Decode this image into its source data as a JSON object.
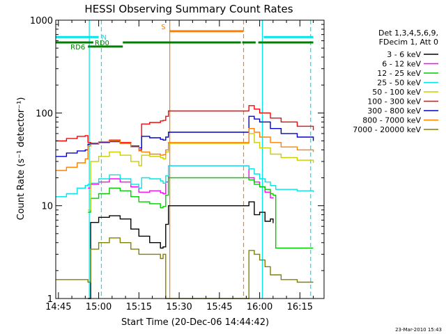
{
  "chart_data": {
    "type": "line",
    "title": "HESSI Observing Summary Count Rates",
    "xlabel": "Start Time (20-Dec-06 14:44:42)",
    "ylabel": "Count Rate (s⁻¹ detector⁻¹)",
    "yscale": "log",
    "ylim": [
      1,
      1000
    ],
    "xlim_minutes_after_1444": [
      0,
      100
    ],
    "x_ticks": [
      {
        "m": 1,
        "label": "14:45"
      },
      {
        "m": 16,
        "label": "15:00"
      },
      {
        "m": 31,
        "label": "15:15"
      },
      {
        "m": 46,
        "label": "15:30"
      },
      {
        "m": 61,
        "label": "15:45"
      },
      {
        "m": 76,
        "label": "16:00"
      },
      {
        "m": 91,
        "label": "16:15"
      }
    ],
    "y_ticks": [
      {
        "v": 1,
        "label": "1"
      },
      {
        "v": 10,
        "label": "10"
      },
      {
        "v": 100,
        "label": "100"
      },
      {
        "v": 1000,
        "label": "1000"
      }
    ],
    "grid": false,
    "legend": {
      "placement": "right",
      "header": [
        "Det 1,3,4,5,6,9,",
        "FDecim 1, Att 0"
      ]
    },
    "series": [
      {
        "name": "3 - 6 keV",
        "color": "#000000",
        "points": [
          [
            12,
            1.0
          ],
          [
            13,
            6.6
          ],
          [
            16,
            7.5
          ],
          [
            20,
            7.8
          ],
          [
            24,
            7.2
          ],
          [
            28,
            5.6
          ],
          [
            31,
            4.7
          ],
          [
            35,
            4.0
          ],
          [
            39,
            3.5
          ],
          [
            40,
            3.6
          ],
          [
            41,
            6.3
          ],
          [
            42,
            10.0
          ],
          [
            72,
            11.0
          ],
          [
            74,
            8.0
          ],
          [
            76,
            8.5
          ],
          [
            78,
            6.8
          ],
          [
            80,
            7.2
          ],
          [
            81,
            6.5
          ]
        ]
      },
      {
        "name": "6 - 12 keV",
        "color": "#ff00ff",
        "points": [
          [
            12,
            15.5
          ],
          [
            13,
            17.0
          ],
          [
            16,
            18.0
          ],
          [
            20,
            19.5
          ],
          [
            24,
            18.0
          ],
          [
            28,
            16.0
          ],
          [
            31,
            14.0
          ],
          [
            35,
            14.5
          ],
          [
            39,
            13.8
          ],
          [
            40,
            13.5
          ],
          [
            41,
            18.0
          ],
          [
            42,
            27.0
          ],
          [
            72,
            20.0
          ],
          [
            74,
            18.0
          ],
          [
            76,
            16.0
          ],
          [
            78,
            14.0
          ],
          [
            80,
            12.2
          ],
          [
            81,
            12.0
          ]
        ]
      },
      {
        "name": "12 - 25 keV",
        "color": "#00cc00",
        "points": [
          [
            12,
            8.5
          ],
          [
            13,
            12.0
          ],
          [
            16,
            13.5
          ],
          [
            20,
            15.5
          ],
          [
            24,
            14.5
          ],
          [
            28,
            12.5
          ],
          [
            31,
            11.0
          ],
          [
            35,
            10.5
          ],
          [
            39,
            9.5
          ],
          [
            40,
            9.8
          ],
          [
            41,
            13.0
          ],
          [
            42,
            20.0
          ],
          [
            72,
            19.0
          ],
          [
            74,
            17.0
          ],
          [
            76,
            16.0
          ],
          [
            78,
            15.0
          ],
          [
            80,
            13.5
          ],
          [
            81,
            13.0
          ],
          [
            82,
            3.5
          ],
          [
            96,
            3.5
          ]
        ]
      },
      {
        "name": "25 - 50 keV",
        "color": "#00e5e5",
        "points": [
          [
            0,
            12.5
          ],
          [
            4,
            13.5
          ],
          [
            8,
            15.5
          ],
          [
            11,
            16.5
          ],
          [
            12,
            17.0
          ],
          [
            13,
            17.5
          ],
          [
            16,
            19.5
          ],
          [
            20,
            21.5
          ],
          [
            24,
            19.5
          ],
          [
            28,
            17.0
          ],
          [
            31,
            15.5
          ],
          [
            32,
            20.0
          ],
          [
            35,
            19.5
          ],
          [
            39,
            18.5
          ],
          [
            40,
            17.5
          ],
          [
            41,
            21.0
          ],
          [
            42,
            27.0
          ],
          [
            72,
            25.0
          ],
          [
            74,
            22.0
          ],
          [
            76,
            19.5
          ],
          [
            78,
            18.0
          ],
          [
            80,
            16.5
          ],
          [
            82,
            15.0
          ],
          [
            86,
            15.0
          ],
          [
            90,
            14.5
          ],
          [
            96,
            14.0
          ]
        ]
      },
      {
        "name": "50 - 100 keV",
        "color": "#cccc00",
        "points": [
          [
            12,
            9.0
          ],
          [
            13,
            30.0
          ],
          [
            16,
            34.0
          ],
          [
            20,
            38.0
          ],
          [
            24,
            35.0
          ],
          [
            28,
            30.0
          ],
          [
            31,
            27.0
          ],
          [
            32,
            35.0
          ],
          [
            35,
            34.0
          ],
          [
            39,
            33.0
          ],
          [
            40,
            32.0
          ],
          [
            41,
            38.0
          ],
          [
            42,
            47.0
          ],
          [
            72,
            60.0
          ],
          [
            74,
            48.0
          ],
          [
            76,
            42.0
          ],
          [
            80,
            36.0
          ],
          [
            84,
            33.0
          ],
          [
            90,
            31.0
          ],
          [
            96,
            29.0
          ]
        ]
      },
      {
        "name": "100 - 300 keV",
        "color": "#ff0000",
        "points": [
          [
            0,
            50.0
          ],
          [
            4,
            53.0
          ],
          [
            8,
            56.0
          ],
          [
            11,
            57.0
          ],
          [
            12,
            48.0
          ],
          [
            13,
            46.0
          ],
          [
            16,
            48.0
          ],
          [
            20,
            51.0
          ],
          [
            24,
            48.0
          ],
          [
            28,
            44.0
          ],
          [
            31,
            40.0
          ],
          [
            32,
            76.0
          ],
          [
            35,
            79.0
          ],
          [
            39,
            82.0
          ],
          [
            40,
            83.0
          ],
          [
            41,
            92.0
          ],
          [
            42,
            105.0
          ],
          [
            72,
            120.0
          ],
          [
            74,
            110.0
          ],
          [
            76,
            100.0
          ],
          [
            80,
            88.0
          ],
          [
            84,
            80.0
          ],
          [
            90,
            72.0
          ],
          [
            96,
            65.0
          ]
        ]
      },
      {
        "name": "300 - 800 keV",
        "color": "#0000cc",
        "points": [
          [
            0,
            34.0
          ],
          [
            4,
            37.0
          ],
          [
            8,
            39.0
          ],
          [
            11,
            40.0
          ],
          [
            12,
            46.0
          ],
          [
            13,
            47.0
          ],
          [
            16,
            48.0
          ],
          [
            20,
            49.0
          ],
          [
            24,
            47.0
          ],
          [
            28,
            44.0
          ],
          [
            31,
            42.0
          ],
          [
            32,
            56.0
          ],
          [
            35,
            54.0
          ],
          [
            39,
            52.0
          ],
          [
            40,
            51.0
          ],
          [
            41,
            55.0
          ],
          [
            42,
            62.0
          ],
          [
            72,
            92.0
          ],
          [
            74,
            86.0
          ],
          [
            76,
            80.0
          ],
          [
            80,
            68.0
          ],
          [
            84,
            60.0
          ],
          [
            90,
            55.0
          ],
          [
            96,
            50.0
          ]
        ]
      },
      {
        "name": "800 - 7000 keV",
        "color": "#ff8000",
        "points": [
          [
            0,
            24.0
          ],
          [
            4,
            26.0
          ],
          [
            8,
            29.0
          ],
          [
            11,
            32.0
          ],
          [
            12,
            44.0
          ],
          [
            13,
            46.0
          ],
          [
            16,
            49.0
          ],
          [
            20,
            50.0
          ],
          [
            24,
            47.0
          ],
          [
            28,
            43.0
          ],
          [
            31,
            39.0
          ],
          [
            32,
            38.0
          ],
          [
            35,
            36.0
          ],
          [
            39,
            35.0
          ],
          [
            40,
            35.5
          ],
          [
            41,
            40.0
          ],
          [
            42,
            48.0
          ],
          [
            72,
            68.0
          ],
          [
            74,
            62.0
          ],
          [
            76,
            55.0
          ],
          [
            80,
            48.0
          ],
          [
            84,
            43.0
          ],
          [
            90,
            40.0
          ],
          [
            96,
            38.0
          ]
        ]
      },
      {
        "name": "7000 - 20000 keV",
        "color": "#808000",
        "points": [
          [
            0,
            1.6
          ],
          [
            10,
            1.6
          ],
          [
            12,
            1.5
          ],
          [
            13,
            3.4
          ],
          [
            16,
            4.0
          ],
          [
            20,
            4.5
          ],
          [
            24,
            4.0
          ],
          [
            28,
            3.4
          ],
          [
            31,
            3.0
          ],
          [
            35,
            3.0
          ],
          [
            39,
            2.7
          ],
          [
            40,
            3.0
          ],
          [
            41,
            1.0
          ],
          [
            72,
            3.3
          ],
          [
            74,
            3.0
          ],
          [
            76,
            2.6
          ],
          [
            78,
            2.2
          ],
          [
            80,
            1.8
          ],
          [
            84,
            1.6
          ],
          [
            90,
            1.5
          ],
          [
            96,
            1.5
          ]
        ]
      }
    ],
    "flag_bars": [
      {
        "label": "N",
        "color": "#00e5e5",
        "level": 658,
        "segments": [
          [
            0,
            16
          ],
          [
            77.5,
            96
          ]
        ]
      },
      {
        "label": "RD0",
        "color": "#008000",
        "level": 575,
        "segments": [
          [
            0,
            14
          ]
        ]
      },
      {
        "label": "RD6",
        "color": "#008000",
        "level": 520,
        "segments": [
          [
            12,
            25
          ]
        ]
      },
      {
        "label": "",
        "color": "#008000",
        "level": 575,
        "segments": [
          [
            25,
            69
          ],
          [
            69.5,
            74.5
          ],
          [
            75.5,
            96
          ]
        ]
      },
      {
        "label": "S",
        "color": "#ff8000",
        "level": 760,
        "segments": [
          [
            42.5,
            70
          ]
        ]
      }
    ],
    "vertical_markers": [
      {
        "m": 12.5,
        "color": "#00e5e5",
        "style": "solid"
      },
      {
        "m": 17,
        "color": "#00e5e5",
        "style": "dashed"
      },
      {
        "m": 42.5,
        "color": "#ff8000",
        "style": "solid"
      },
      {
        "m": 70,
        "color": "#ff8000",
        "style": "dashed"
      },
      {
        "m": 77,
        "color": "#00e5e5",
        "style": "solid"
      },
      {
        "m": 95,
        "color": "#00e5e5",
        "style": "dashed"
      }
    ],
    "footer_timestamp": "23-Mar-2010 15:43"
  }
}
